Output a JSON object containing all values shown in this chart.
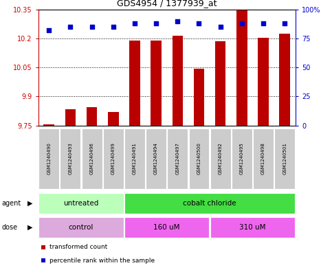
{
  "title": "GDS4954 / 1377939_at",
  "samples": [
    "GSM1240490",
    "GSM1240493",
    "GSM1240496",
    "GSM1240499",
    "GSM1240491",
    "GSM1240494",
    "GSM1240497",
    "GSM1240500",
    "GSM1240492",
    "GSM1240495",
    "GSM1240498",
    "GSM1240501"
  ],
  "bar_values": [
    9.755,
    9.835,
    9.845,
    9.82,
    10.19,
    10.19,
    10.215,
    10.045,
    10.185,
    10.345,
    10.205,
    10.225
  ],
  "dot_values": [
    82,
    85,
    85,
    85,
    88,
    88,
    90,
    88,
    85,
    88,
    88,
    88
  ],
  "ymin": 9.75,
  "ymax": 10.35,
  "yticks": [
    9.75,
    9.9,
    10.05,
    10.2,
    10.35
  ],
  "y2min": 0,
  "y2max": 100,
  "y2ticks": [
    0,
    25,
    50,
    75,
    100
  ],
  "bar_color": "#bb0000",
  "dot_color": "#0000cc",
  "bar_bottom": 9.75,
  "agent_groups": [
    {
      "label": "untreated",
      "start": 0,
      "end": 4,
      "color": "#bbffbb"
    },
    {
      "label": "cobalt chloride",
      "start": 4,
      "end": 12,
      "color": "#44dd44"
    }
  ],
  "dose_groups": [
    {
      "label": "control",
      "start": 0,
      "end": 4,
      "color": "#ddaadd"
    },
    {
      "label": "160 uM",
      "start": 4,
      "end": 8,
      "color": "#ee66ee"
    },
    {
      "label": "310 uM",
      "start": 8,
      "end": 12,
      "color": "#ee66ee"
    }
  ],
  "agent_label": "agent",
  "dose_label": "dose",
  "legend_items": [
    {
      "label": "transformed count",
      "color": "#bb0000"
    },
    {
      "label": "percentile rank within the sample",
      "color": "#0000cc"
    }
  ],
  "left_axis_color": "#cc0000",
  "right_axis_color": "#0000cc",
  "grid_color": "#000000",
  "sample_bg_color": "#cccccc",
  "fig_width": 4.83,
  "fig_height": 3.93,
  "dpi": 100
}
